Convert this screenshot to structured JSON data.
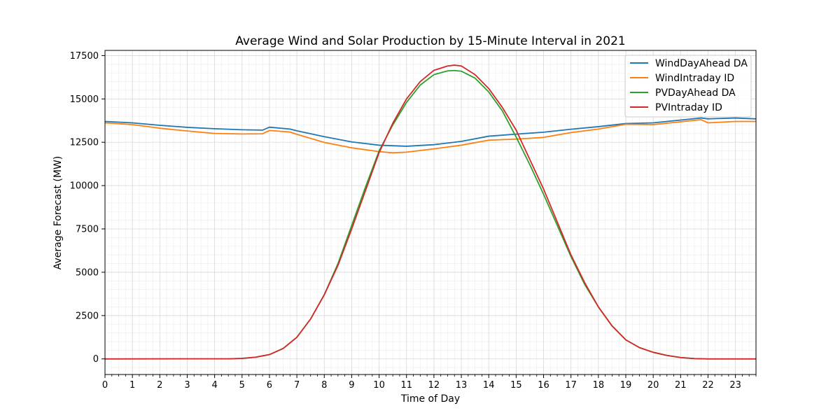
{
  "chart_data": {
    "type": "line",
    "title": "Average Wind and Solar Production by 15-Minute Interval in 2021",
    "xlabel": "Time of Day",
    "ylabel": "Average Forecast (MW)",
    "xlim": [
      0,
      23.75
    ],
    "ylim": [
      -900,
      17800
    ],
    "x_ticks": [
      "0",
      "1",
      "2",
      "3",
      "4",
      "5",
      "6",
      "7",
      "8",
      "9",
      "10",
      "11",
      "12",
      "13",
      "14",
      "15",
      "16",
      "17",
      "18",
      "19",
      "20",
      "21",
      "22",
      "23"
    ],
    "y_ticks": [
      "0",
      "2500",
      "5000",
      "7500",
      "10000",
      "12500",
      "15000",
      "17500"
    ],
    "grid": true,
    "legend_position": "top-right",
    "series": [
      {
        "name": "WindDayAhead DA",
        "color": "#1f77b4",
        "points": [
          [
            0,
            13700
          ],
          [
            1,
            13620
          ],
          [
            2,
            13480
          ],
          [
            3,
            13360
          ],
          [
            4,
            13280
          ],
          [
            5,
            13220
          ],
          [
            5.75,
            13200
          ],
          [
            6,
            13370
          ],
          [
            6.75,
            13260
          ],
          [
            7,
            13160
          ],
          [
            8,
            12820
          ],
          [
            9,
            12520
          ],
          [
            10,
            12330
          ],
          [
            11,
            12270
          ],
          [
            12,
            12360
          ],
          [
            13,
            12550
          ],
          [
            14,
            12850
          ],
          [
            15,
            12970
          ],
          [
            16,
            13080
          ],
          [
            17,
            13250
          ],
          [
            18,
            13400
          ],
          [
            19,
            13580
          ],
          [
            20,
            13620
          ],
          [
            21,
            13780
          ],
          [
            21.75,
            13900
          ],
          [
            22,
            13850
          ],
          [
            23,
            13900
          ],
          [
            23.75,
            13850
          ]
        ]
      },
      {
        "name": "WindIntraday ID",
        "color": "#ff7f0e",
        "points": [
          [
            0,
            13620
          ],
          [
            1,
            13520
          ],
          [
            2,
            13310
          ],
          [
            3,
            13150
          ],
          [
            4,
            13010
          ],
          [
            5,
            12980
          ],
          [
            5.75,
            12990
          ],
          [
            6,
            13180
          ],
          [
            6.75,
            13090
          ],
          [
            7,
            12960
          ],
          [
            8,
            12490
          ],
          [
            9,
            12180
          ],
          [
            10,
            11960
          ],
          [
            10.5,
            11890
          ],
          [
            11,
            11930
          ],
          [
            12,
            12120
          ],
          [
            13,
            12330
          ],
          [
            14,
            12620
          ],
          [
            15,
            12680
          ],
          [
            16,
            12780
          ],
          [
            17,
            13060
          ],
          [
            18,
            13260
          ],
          [
            19,
            13540
          ],
          [
            20,
            13520
          ],
          [
            21,
            13680
          ],
          [
            21.75,
            13800
          ],
          [
            22,
            13620
          ],
          [
            23,
            13700
          ],
          [
            23.75,
            13700
          ]
        ]
      },
      {
        "name": "PVDayAhead DA",
        "color": "#2ca02c",
        "points": [
          [
            0,
            0
          ],
          [
            4.5,
            5
          ],
          [
            5,
            30
          ],
          [
            5.5,
            100
          ],
          [
            6,
            250
          ],
          [
            6.5,
            600
          ],
          [
            7,
            1250
          ],
          [
            7.5,
            2300
          ],
          [
            8,
            3700
          ],
          [
            8.5,
            5500
          ],
          [
            9,
            7700
          ],
          [
            9.5,
            9900
          ],
          [
            10,
            12000
          ],
          [
            10.5,
            13500
          ],
          [
            11,
            14800
          ],
          [
            11.5,
            15800
          ],
          [
            12,
            16400
          ],
          [
            12.5,
            16620
          ],
          [
            12.75,
            16640
          ],
          [
            13,
            16600
          ],
          [
            13.5,
            16200
          ],
          [
            14,
            15400
          ],
          [
            14.5,
            14300
          ],
          [
            15,
            12800
          ],
          [
            15.5,
            11200
          ],
          [
            16,
            9500
          ],
          [
            16.5,
            7700
          ],
          [
            17,
            5900
          ],
          [
            17.5,
            4300
          ],
          [
            18,
            3000
          ],
          [
            18.5,
            1900
          ],
          [
            19,
            1100
          ],
          [
            19.5,
            650
          ],
          [
            20,
            380
          ],
          [
            20.5,
            200
          ],
          [
            21,
            80
          ],
          [
            21.5,
            20
          ],
          [
            22,
            0
          ],
          [
            23.75,
            0
          ]
        ]
      },
      {
        "name": "PVIntraday ID",
        "color": "#d62728",
        "points": [
          [
            0,
            0
          ],
          [
            4.5,
            5
          ],
          [
            5,
            30
          ],
          [
            5.5,
            100
          ],
          [
            6,
            250
          ],
          [
            6.5,
            600
          ],
          [
            7,
            1250
          ],
          [
            7.5,
            2300
          ],
          [
            8,
            3700
          ],
          [
            8.5,
            5400
          ],
          [
            9,
            7500
          ],
          [
            9.5,
            9700
          ],
          [
            10,
            11900
          ],
          [
            10.5,
            13600
          ],
          [
            11,
            15000
          ],
          [
            11.5,
            16000
          ],
          [
            12,
            16650
          ],
          [
            12.5,
            16900
          ],
          [
            12.75,
            16950
          ],
          [
            13,
            16900
          ],
          [
            13.5,
            16400
          ],
          [
            14,
            15600
          ],
          [
            14.5,
            14500
          ],
          [
            15,
            13200
          ],
          [
            15.5,
            11500
          ],
          [
            16,
            9800
          ],
          [
            16.5,
            7900
          ],
          [
            17,
            6000
          ],
          [
            17.5,
            4400
          ],
          [
            18,
            3000
          ],
          [
            18.5,
            1900
          ],
          [
            19,
            1100
          ],
          [
            19.5,
            650
          ],
          [
            20,
            380
          ],
          [
            20.5,
            200
          ],
          [
            21,
            80
          ],
          [
            21.5,
            20
          ],
          [
            22,
            0
          ],
          [
            23.75,
            0
          ]
        ]
      }
    ]
  }
}
